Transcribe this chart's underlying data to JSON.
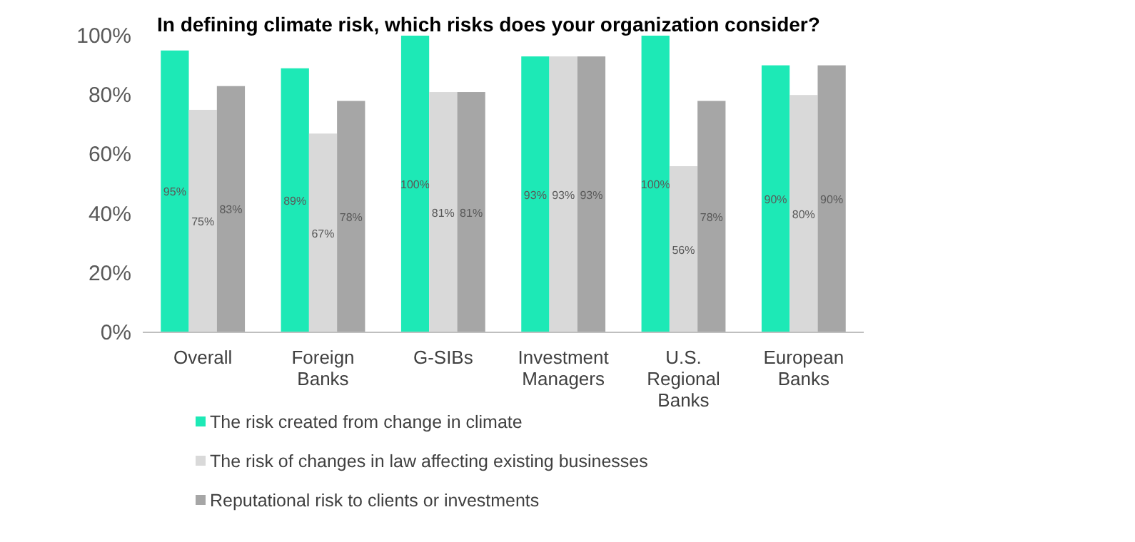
{
  "chart_data": {
    "type": "bar",
    "title": "In defining climate risk, which risks does your organization consider?",
    "categories": [
      "Overall",
      "Foreign Banks",
      "G-SIBs",
      "Investment Managers",
      "U.S. Regional Banks",
      "European Banks"
    ],
    "series": [
      {
        "name": "The risk created from change in climate",
        "color": "#1de9b6",
        "values": [
          95,
          89,
          100,
          93,
          100,
          90
        ],
        "value_labels": [
          "95%",
          "89%",
          "100%",
          "93%",
          "100%",
          "90%"
        ]
      },
      {
        "name": "The risk of changes in law affecting existing businesses",
        "color": "#d9d9d9",
        "values": [
          75,
          67,
          81,
          93,
          56,
          80
        ],
        "value_labels": [
          "75%",
          "67%",
          "81%",
          "93%",
          "56%",
          "80%"
        ]
      },
      {
        "name": "Reputational risk to clients or investments",
        "color": "#a6a6a6",
        "values": [
          83,
          78,
          81,
          93,
          78,
          90
        ],
        "value_labels": [
          "83%",
          "78%",
          "81%",
          "93%",
          "78%",
          "90%"
        ]
      }
    ],
    "ylim": [
      0,
      100
    ],
    "yticks": [
      {
        "value": 0,
        "label": "0%"
      },
      {
        "value": 20,
        "label": "20%"
      },
      {
        "value": 40,
        "label": "40%"
      },
      {
        "value": 60,
        "label": "60%"
      },
      {
        "value": 80,
        "label": "80%"
      },
      {
        "value": 100,
        "label": "100%"
      }
    ],
    "grid": false,
    "legend": "bottom"
  }
}
